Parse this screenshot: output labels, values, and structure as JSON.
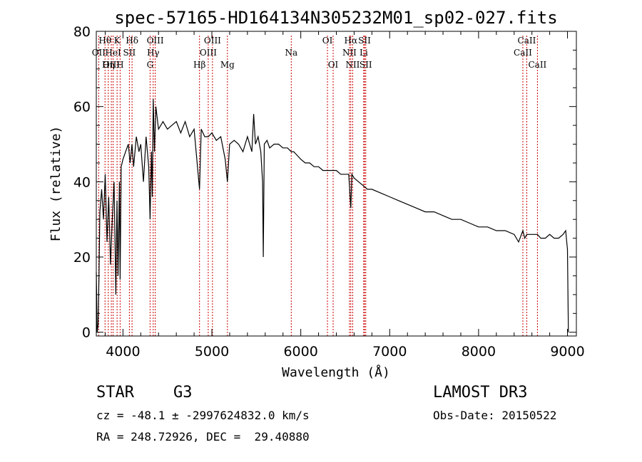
{
  "chart_data": {
    "type": "line",
    "title": "spec-57165-HD164134N305232M01_sp02-027.fits",
    "xlabel": "Wavelength (Å)",
    "ylabel": "Flux (relative)",
    "xlim": [
      3700,
      9100
    ],
    "ylim": [
      -1,
      80
    ],
    "xticks": [
      4000,
      5000,
      6000,
      7000,
      8000,
      9000
    ],
    "yticks": [
      0,
      20,
      40,
      60,
      80
    ],
    "grid": false,
    "series": [
      {
        "name": "spectrum",
        "x": [
          3700,
          3710,
          3720,
          3730,
          3740,
          3760,
          3780,
          3800,
          3820,
          3840,
          3860,
          3880,
          3900,
          3920,
          3933,
          3945,
          3960,
          3968,
          3980,
          4000,
          4030,
          4060,
          4080,
          4101,
          4120,
          4150,
          4180,
          4200,
          4230,
          4260,
          4290,
          4305,
          4320,
          4330,
          4340,
          4355,
          4370,
          4400,
          4450,
          4500,
          4550,
          4600,
          4650,
          4700,
          4750,
          4800,
          4861,
          4880,
          4920,
          4960,
          5000,
          5050,
          5100,
          5150,
          5175,
          5200,
          5250,
          5300,
          5350,
          5400,
          5450,
          5470,
          5490,
          5520,
          5550,
          5570,
          5578,
          5590,
          5620,
          5650,
          5700,
          5750,
          5800,
          5850,
          5893,
          5920,
          5960,
          6000,
          6050,
          6100,
          6150,
          6200,
          6250,
          6300,
          6350,
          6400,
          6450,
          6500,
          6540,
          6563,
          6575,
          6600,
          6650,
          6700,
          6750,
          6800,
          6900,
          7000,
          7100,
          7200,
          7300,
          7400,
          7500,
          7600,
          7700,
          7800,
          7900,
          8000,
          8100,
          8200,
          8300,
          8400,
          8450,
          8498,
          8520,
          8542,
          8580,
          8620,
          8662,
          8700,
          8750,
          8800,
          8850,
          8900,
          8950,
          8980,
          9000,
          9010
        ],
        "values": [
          16,
          0,
          2,
          14,
          32,
          38,
          30,
          42,
          24,
          36,
          18,
          30,
          40,
          10,
          35,
          15,
          40,
          14,
          44,
          46,
          48,
          50,
          45,
          50,
          44,
          52,
          48,
          50,
          40,
          52,
          44,
          30,
          48,
          36,
          62,
          48,
          60,
          54,
          56,
          54,
          55,
          56,
          53,
          56,
          52,
          54,
          38,
          54,
          52,
          52,
          53,
          51,
          52,
          46,
          40,
          50,
          51,
          50,
          48,
          52,
          48,
          58,
          50,
          52,
          48,
          40,
          20,
          50,
          51,
          49,
          50,
          50,
          49,
          49,
          48,
          48,
          47,
          46,
          45,
          45,
          44,
          44,
          43,
          43,
          43,
          43,
          42,
          42,
          42,
          33,
          42,
          41,
          40,
          39,
          38,
          38,
          37,
          36,
          35,
          34,
          33,
          32,
          32,
          31,
          30,
          30,
          29,
          28,
          28,
          27,
          27,
          26,
          24,
          27,
          25,
          26,
          26,
          26,
          26,
          25,
          25,
          26,
          25,
          25,
          26,
          27,
          22,
          0
        ]
      }
    ],
    "emission_lines": [
      {
        "label": "Hθ",
        "wavelength": 3798,
        "row": 0
      },
      {
        "label": "OII",
        "wavelength": 3727,
        "row": 1
      },
      {
        "label": "OIII",
        "wavelength": 3869,
        "row": 2
      },
      {
        "label": "HeI",
        "wavelength": 3889,
        "row": 1
      },
      {
        "label": "Hη",
        "wavelength": 3835,
        "row": 2
      },
      {
        "label": "K",
        "wavelength": 3934,
        "row": 0
      },
      {
        "label": "H",
        "wavelength": 3968,
        "row": 2
      },
      {
        "label": "SII",
        "wavelength": 4072,
        "row": 1
      },
      {
        "label": "Hδ",
        "wavelength": 4102,
        "row": 0
      },
      {
        "label": "OIII",
        "wavelength": 4363,
        "row": 0
      },
      {
        "label": "Hγ",
        "wavelength": 4340,
        "row": 1
      },
      {
        "label": "G",
        "wavelength": 4305,
        "row": 2
      },
      {
        "label": "Hβ",
        "wavelength": 4861,
        "row": 2
      },
      {
        "label": "OIII",
        "wavelength": 5007,
        "row": 0
      },
      {
        "label": "OIII",
        "wavelength": 4959,
        "row": 1
      },
      {
        "label": "Mg",
        "wavelength": 5175,
        "row": 2
      },
      {
        "label": "Na",
        "wavelength": 5893,
        "row": 1
      },
      {
        "label": "OI",
        "wavelength": 6300,
        "row": 0
      },
      {
        "label": "OI",
        "wavelength": 6364,
        "row": 2
      },
      {
        "label": "Hα",
        "wavelength": 6563,
        "row": 0
      },
      {
        "label": "NII",
        "wavelength": 6548,
        "row": 1
      },
      {
        "label": "NII",
        "wavelength": 6584,
        "row": 2
      },
      {
        "label": "SII",
        "wavelength": 6717,
        "row": 0
      },
      {
        "label": "Li",
        "wavelength": 6708,
        "row": 1
      },
      {
        "label": "SII",
        "wavelength": 6731,
        "row": 2
      },
      {
        "label": "CaII",
        "wavelength": 8542,
        "row": 0
      },
      {
        "label": "CaII",
        "wavelength": 8498,
        "row": 1
      },
      {
        "label": "CaII",
        "wavelength": 8662,
        "row": 2
      }
    ],
    "line_color": "#cc0000",
    "spectrum_color": "#000000"
  },
  "info": {
    "object_class": "STAR",
    "subclass": "G3",
    "survey": "LAMOST DR3",
    "redshift": "cz = -48.1 ± -2997624832.0 km/s",
    "obs_date": "Obs-Date: 20150522",
    "coords": "RA = 248.72926, DEC =  29.40880"
  }
}
